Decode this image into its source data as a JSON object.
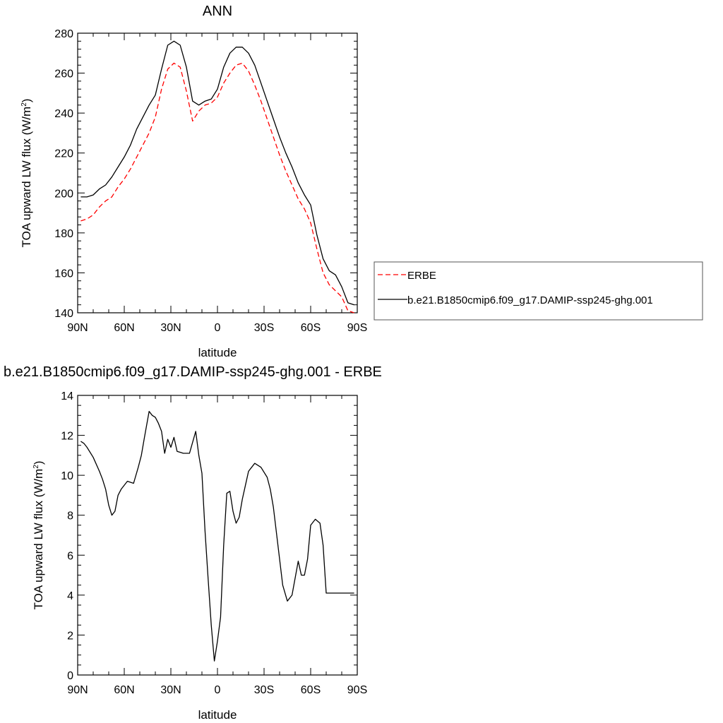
{
  "chart_data": [
    {
      "type": "line",
      "title": "ANN",
      "xlabel": "latitude",
      "ylabel": "TOA upward LW flux (W/m",
      "ylabel_sup": "2",
      "ylabel_end": ")",
      "xlim": [
        90,
        -90
      ],
      "ylim": [
        140,
        280
      ],
      "x_ticks": [
        {
          "value": 90,
          "label": "90N"
        },
        {
          "value": 60,
          "label": "60N"
        },
        {
          "value": 30,
          "label": "30N"
        },
        {
          "value": 0,
          "label": "0"
        },
        {
          "value": -30,
          "label": "30S"
        },
        {
          "value": -60,
          "label": "60S"
        },
        {
          "value": -90,
          "label": "90S"
        }
      ],
      "y_ticks": [
        140,
        160,
        180,
        200,
        220,
        240,
        260,
        280
      ],
      "grid": false,
      "legend_position": "right",
      "series": [
        {
          "name": "ERBE",
          "color": "#ff0000",
          "dashed": true,
          "x": [
            88,
            84,
            80,
            76,
            72,
            68,
            64,
            60,
            56,
            52,
            48,
            44,
            40,
            36,
            32,
            28,
            24,
            20,
            16,
            12,
            8,
            4,
            0,
            -4,
            -8,
            -12,
            -16,
            -20,
            -24,
            -28,
            -32,
            -36,
            -40,
            -44,
            -48,
            -52,
            -56,
            -60,
            -64,
            -68,
            -72,
            -76,
            -80,
            -84,
            -88
          ],
          "y": [
            186,
            187,
            189,
            193,
            196,
            198,
            203,
            207,
            212,
            218,
            224,
            230,
            238,
            252,
            262,
            265,
            263,
            251,
            236,
            241,
            244,
            245,
            248,
            255,
            260,
            264,
            265,
            261,
            254,
            246,
            237,
            228,
            219,
            211,
            204,
            197,
            192,
            185,
            172,
            160,
            154,
            151,
            148,
            141,
            140
          ]
        },
        {
          "name": "b.e21.B1850cmip6.f09_g17.DAMIP-ssp245-ghg.001",
          "color": "#000000",
          "dashed": false,
          "x": [
            88,
            84,
            80,
            76,
            72,
            68,
            64,
            60,
            56,
            52,
            48,
            44,
            40,
            36,
            32,
            28,
            24,
            20,
            16,
            12,
            8,
            4,
            0,
            -4,
            -8,
            -12,
            -16,
            -20,
            -24,
            -28,
            -32,
            -36,
            -40,
            -44,
            -48,
            -52,
            -56,
            -60,
            -64,
            -68,
            -72,
            -76,
            -80,
            -84,
            -88
          ],
          "y": [
            198,
            198,
            199,
            202,
            204,
            208,
            213,
            218,
            224,
            232,
            238,
            244,
            249,
            262,
            274,
            276,
            274,
            263,
            246,
            244,
            246,
            247,
            252,
            263,
            270,
            273,
            273,
            270,
            264,
            255,
            246,
            237,
            228,
            220,
            213,
            205,
            199,
            194,
            179,
            167,
            161,
            159,
            153,
            145,
            144
          ]
        }
      ]
    },
    {
      "type": "line",
      "title": "b.e21.B1850cmip6.f09_g17.DAMIP-ssp245-ghg.001 - ERBE",
      "xlabel": "latitude",
      "ylabel": "TOA upward LW flux (W/m",
      "ylabel_sup": "2",
      "ylabel_end": ")",
      "xlim": [
        90,
        -90
      ],
      "ylim": [
        0,
        14
      ],
      "x_ticks": [
        {
          "value": 90,
          "label": "90N"
        },
        {
          "value": 60,
          "label": "60N"
        },
        {
          "value": 30,
          "label": "30N"
        },
        {
          "value": 0,
          "label": "0"
        },
        {
          "value": -30,
          "label": "30S"
        },
        {
          "value": -60,
          "label": "60S"
        },
        {
          "value": -90,
          "label": "90S"
        }
      ],
      "y_ticks": [
        0,
        2,
        4,
        6,
        8,
        10,
        12,
        14
      ],
      "grid": false,
      "series": [
        {
          "color": "#000000",
          "dashed": false,
          "x": [
            88,
            86,
            84,
            80,
            76,
            74,
            72,
            70,
            68,
            66,
            64,
            62,
            58,
            54,
            51,
            49,
            47,
            44,
            42,
            40,
            38,
            36,
            34,
            32,
            30,
            28,
            26,
            22,
            18,
            14,
            12,
            10,
            8,
            6,
            4,
            2,
            0,
            -2,
            -4,
            -6,
            -8,
            -10,
            -12,
            -14,
            -16,
            -18,
            -20,
            -22,
            -24,
            -28,
            -32,
            -34,
            -36,
            -40,
            -42,
            -45,
            -48,
            -52,
            -54,
            -56,
            -58,
            -60,
            -63,
            -66,
            -68,
            -70,
            -72,
            -75,
            -78,
            -80,
            -82,
            -84,
            -86,
            -88
          ],
          "y": [
            11.7,
            11.6,
            11.4,
            10.9,
            10.2,
            9.8,
            9.3,
            8.5,
            8.0,
            8.2,
            9.0,
            9.3,
            9.7,
            9.6,
            10.4,
            11.0,
            11.9,
            13.2,
            13.0,
            12.9,
            12.6,
            12.2,
            11.1,
            11.8,
            11.4,
            11.9,
            11.2,
            11.1,
            11.1,
            12.2,
            11.0,
            10.1,
            7.2,
            4.8,
            2.5,
            0.7,
            1.7,
            2.9,
            6.5,
            9.1,
            9.2,
            8.2,
            7.6,
            7.9,
            8.8,
            9.5,
            10.2,
            10.4,
            10.6,
            10.4,
            9.9,
            9.3,
            8.4,
            5.8,
            4.5,
            3.7,
            4.0,
            5.7,
            5.0,
            5.0,
            5.8,
            7.5,
            7.8,
            7.6,
            6.5,
            4.1,
            4.1,
            4.1,
            4.1,
            4.1,
            4.1,
            4.1,
            4.1,
            4.1
          ]
        }
      ]
    }
  ]
}
